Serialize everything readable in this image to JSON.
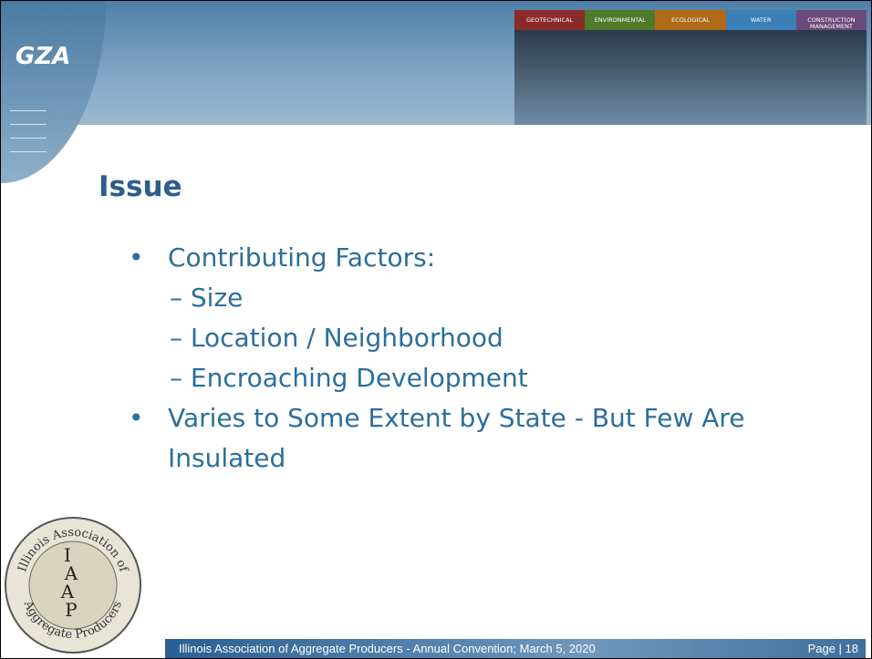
{
  "header": {
    "logo": "GZA",
    "categories": [
      "Geotechnical",
      "Environmental",
      "Ecological",
      "Water",
      "Construction Management"
    ]
  },
  "title": "Issue",
  "bullets": [
    {
      "level": 1,
      "text": "Contributing Factors:"
    },
    {
      "level": 2,
      "text": "Size"
    },
    {
      "level": 2,
      "text": "Location / Neighborhood"
    },
    {
      "level": 2,
      "text": "Encroaching Development"
    },
    {
      "level": 1,
      "text": "Varies to Some Extent by State - But Few Are Insulated"
    }
  ],
  "seal": {
    "ring_top": "Illinois Association of",
    "ring_bottom": "Aggregate Producers",
    "letters": [
      "I",
      "A",
      "A",
      "P"
    ]
  },
  "footer": {
    "text": "Illinois Association of Aggregate Producers - Annual Convention; March 5, 2020",
    "page": "Page | 18"
  }
}
